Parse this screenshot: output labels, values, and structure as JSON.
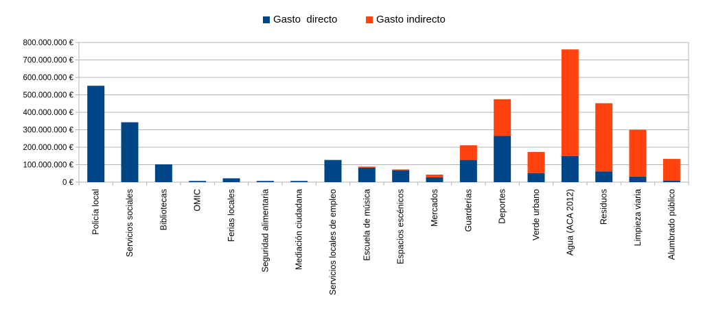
{
  "chart_data": {
    "type": "bar",
    "stacked": true,
    "categories": [
      "Policía local",
      "Servicios  sociales",
      "Bibliotecas",
      "OMIC",
      "Ferias locales",
      "Seguridad alimentaria",
      "Mediación ciudadana",
      "Servicios locales de empleo",
      "Escuela de música",
      "Espacios escénicos",
      "Mercados",
      "Guarderías",
      "Deportes",
      "Verde urbano",
      "Agua (ACA 2012)",
      "Residuos",
      "Limpieza viaria",
      "Alumbrado público"
    ],
    "series": [
      {
        "name": "Gasto  directo",
        "color": "#004586",
        "values": [
          552000000,
          343000000,
          102000000,
          7000000,
          22000000,
          7000000,
          7000000,
          127000000,
          83000000,
          68000000,
          28000000,
          127000000,
          265000000,
          52000000,
          150000000,
          62000000,
          32000000,
          8000000
        ]
      },
      {
        "name": "Gasto indirecto",
        "color": "#ff420e",
        "values": [
          0,
          0,
          0,
          0,
          0,
          0,
          0,
          0,
          6000000,
          5000000,
          15000000,
          84000000,
          210000000,
          121000000,
          610000000,
          390000000,
          268000000,
          125000000
        ]
      }
    ],
    "ylim": [
      0,
      800000000
    ],
    "yticks": [
      "0 €",
      "100.000.000 €",
      "200.000.000 €",
      "300.000.000 €",
      "400.000.000 €",
      "500.000.000 €",
      "600.000.000 €",
      "700.000.000 €",
      "800.000.000 €"
    ],
    "grid": true,
    "legend_position": "top",
    "title": "",
    "xlabel": "",
    "ylabel": ""
  }
}
